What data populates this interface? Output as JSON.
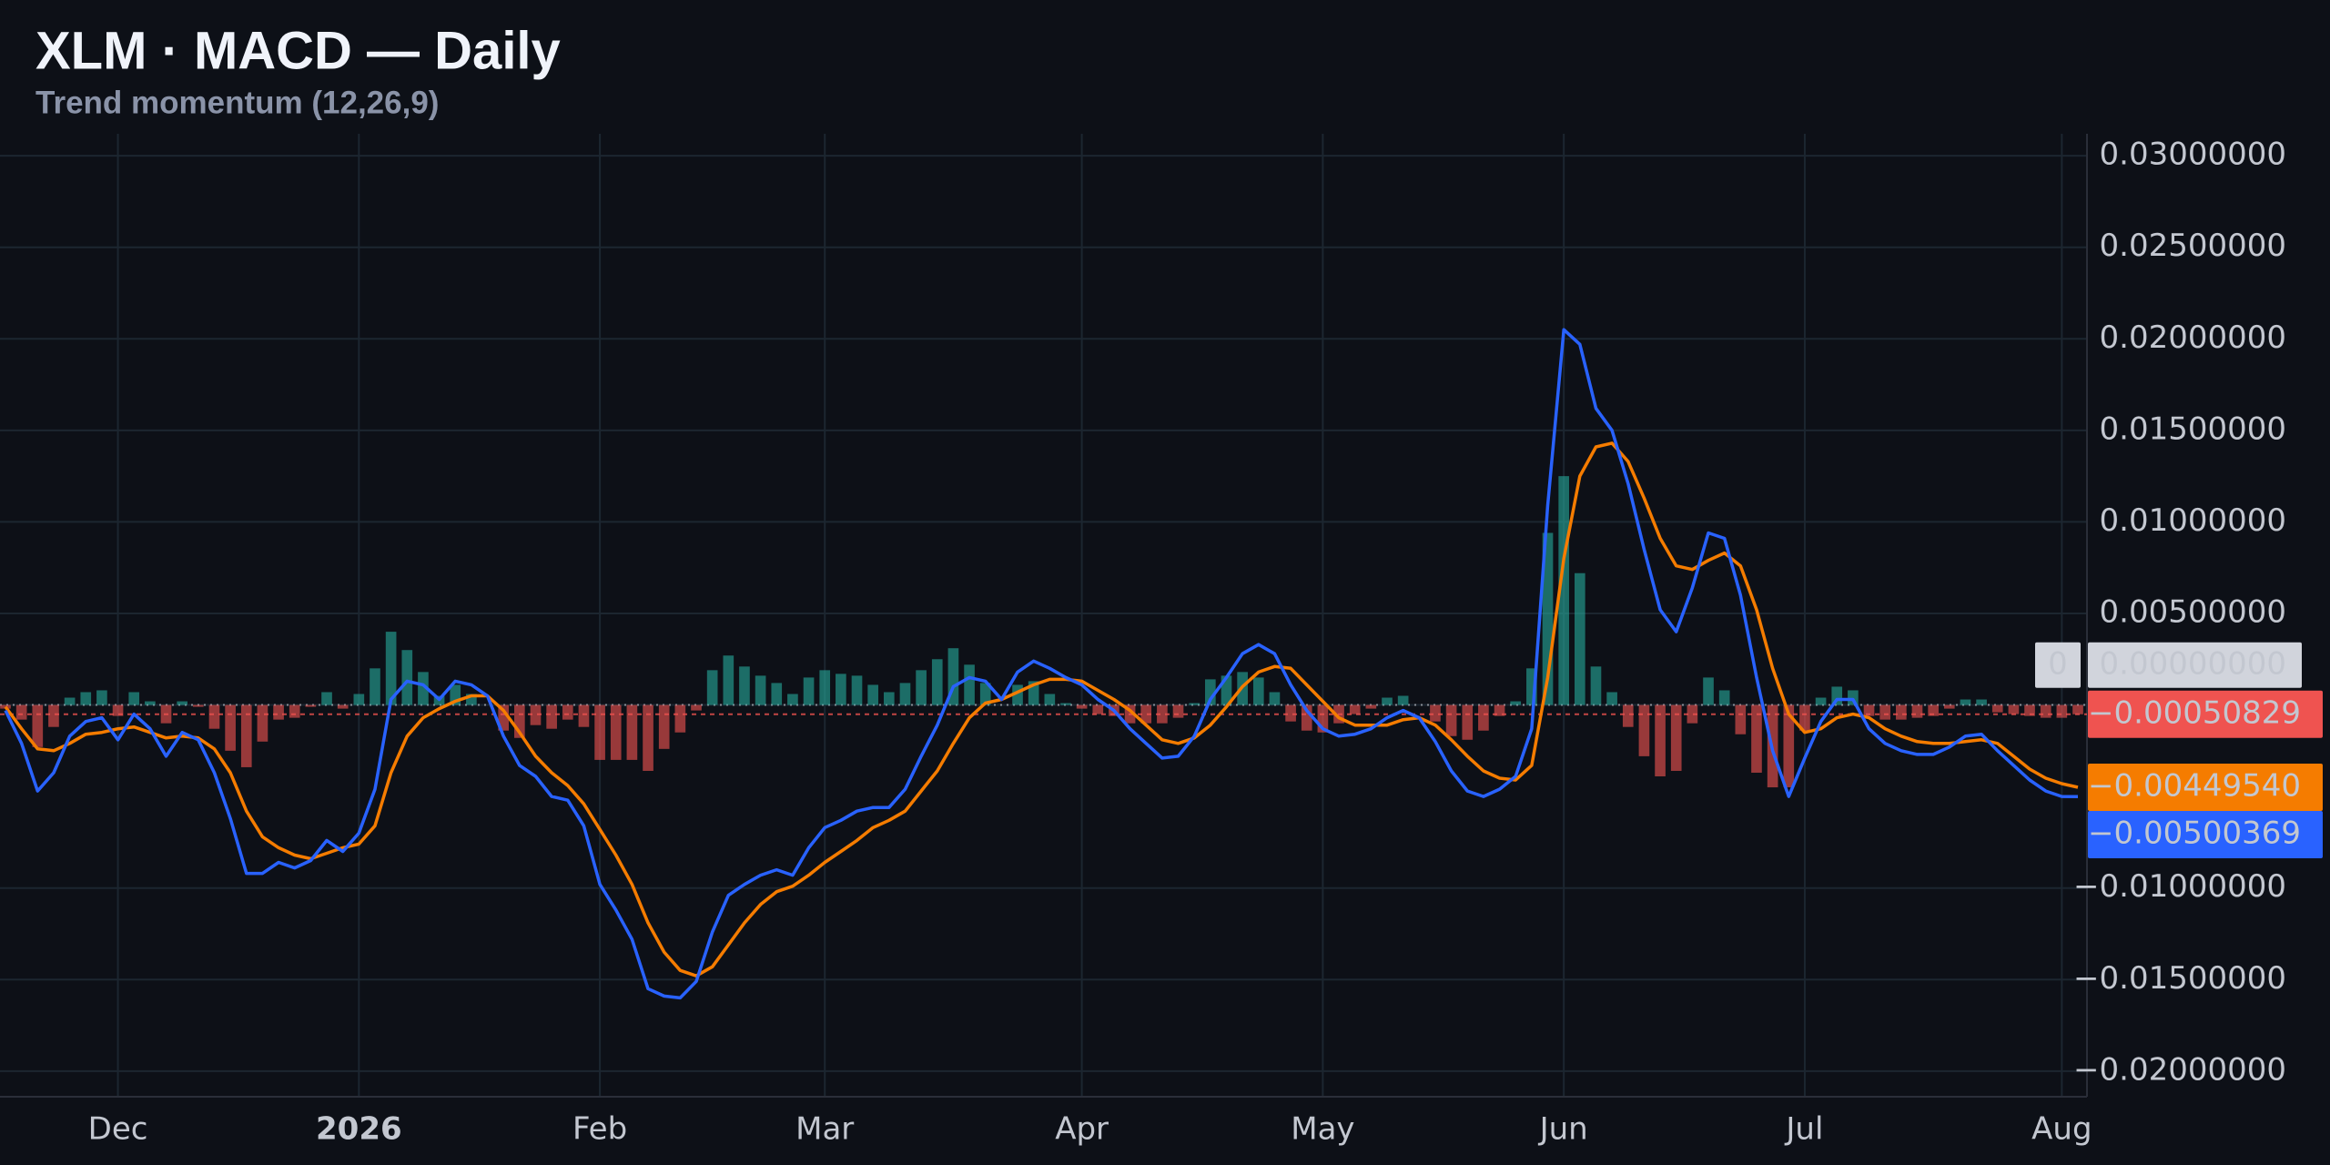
{
  "chart_data": {
    "type": "macd",
    "title": "XLM · MACD — Daily",
    "subtitle": "Trend momentum (12,26,9)",
    "zero_tag": "0",
    "grid": true,
    "categories": [
      null,
      null,
      null,
      null,
      null,
      null,
      null,
      "Dec",
      null,
      null,
      null,
      null,
      null,
      null,
      null,
      null,
      null,
      null,
      null,
      null,
      null,
      null,
      "2026",
      null,
      null,
      null,
      null,
      null,
      null,
      null,
      null,
      null,
      null,
      null,
      null,
      null,
      null,
      "Feb",
      null,
      null,
      null,
      null,
      null,
      null,
      null,
      null,
      null,
      null,
      null,
      null,
      null,
      "Mar",
      null,
      null,
      null,
      null,
      null,
      null,
      null,
      null,
      null,
      null,
      null,
      null,
      null,
      null,
      null,
      "Apr",
      null,
      null,
      null,
      null,
      null,
      null,
      null,
      null,
      null,
      null,
      null,
      null,
      null,
      null,
      "May",
      null,
      null,
      null,
      null,
      null,
      null,
      null,
      null,
      null,
      null,
      null,
      null,
      null,
      null,
      "Jun",
      null,
      null,
      null,
      null,
      null,
      null,
      null,
      null,
      null,
      null,
      null,
      null,
      null,
      null,
      "Jul",
      null,
      null,
      null,
      null,
      null,
      null,
      null,
      null,
      null,
      null,
      null,
      null,
      null,
      null,
      null,
      "Aug",
      null
    ],
    "ylim": [
      -0.0214,
      0.0312
    ],
    "yticks": [
      {
        "value": 0.03,
        "label": "0.03000000"
      },
      {
        "value": 0.025,
        "label": "0.02500000"
      },
      {
        "value": 0.02,
        "label": "0.02000000"
      },
      {
        "value": 0.015,
        "label": "0.01500000"
      },
      {
        "value": 0.01,
        "label": "0.01000000"
      },
      {
        "value": 0.005,
        "label": "0.00500000"
      },
      {
        "value": 0,
        "label": "0.00000000"
      },
      {
        "value": -0.01,
        "label": "−0.01000000"
      },
      {
        "value": -0.015,
        "label": "−0.01500000"
      },
      {
        "value": -0.02,
        "label": "−0.02000000"
      }
    ],
    "series": [
      {
        "style": "bar",
        "color": "#ef5350",
        "positive_color": "#26a69a",
        "negative_color": "#ef5350",
        "last_value_label": "−0.00050829",
        "values": [
          -0.0002,
          -0.0008,
          -0.0023,
          -0.0012,
          0.0004,
          0.0007,
          0.0008,
          -0.0006,
          0.0007,
          0.0002,
          -0.001,
          0.0002,
          -0.0001,
          -0.0013,
          -0.0025,
          -0.0034,
          -0.002,
          -0.0008,
          -0.0007,
          -0.0001,
          0.0007,
          -0.0002,
          0.0006,
          0.002,
          0.004,
          0.003,
          0.0018,
          0.0005,
          0.0011,
          0.0006,
          0,
          -0.0014,
          -0.0018,
          -0.0011,
          -0.0013,
          -0.0008,
          -0.0012,
          -0.003,
          -0.003,
          -0.003,
          -0.0036,
          -0.0024,
          -0.0015,
          -0.0003,
          0.0019,
          0.0027,
          0.0021,
          0.0016,
          0.0012,
          0.0006,
          0.0015,
          0.0019,
          0.0017,
          0.0016,
          0.0011,
          0.0007,
          0.0012,
          0.0019,
          0.0025,
          0.0031,
          0.0022,
          0.0012,
          0,
          0.0011,
          0.0013,
          0.0006,
          0.0001,
          -0.0002,
          -0.0005,
          -0.0006,
          -0.001,
          -0.001,
          -0.001,
          -0.0007,
          0.0001,
          0.0014,
          0.0016,
          0.0018,
          0.0015,
          0.0007,
          -0.0009,
          -0.0014,
          -0.0015,
          -0.001,
          -0.0005,
          -0.0002,
          0.0004,
          0.0005,
          0,
          -0.0009,
          -0.0017,
          -0.0019,
          -0.0014,
          -0.0006,
          0.0002,
          0.002,
          0.0094,
          0.0125,
          0.0072,
          0.0021,
          0.0007,
          -0.0012,
          -0.0028,
          -0.0039,
          -0.0036,
          -0.001,
          0.0015,
          0.0008,
          -0.0016,
          -0.0037,
          -0.0045,
          -0.0045,
          -0.0014,
          0.0004,
          0.001,
          0.0008,
          -0.0006,
          -0.0008,
          -0.0008,
          -0.0007,
          -0.0006,
          -0.0002,
          0.0003,
          0.0003,
          -0.0004,
          -0.0005,
          -0.0006,
          -0.0007,
          -0.0007,
          -0.00050829
        ]
      },
      {
        "style": "line",
        "color": "#f57c00",
        "last_value_label": "−0.00449540",
        "values": [
          -0.0001,
          -0.0013,
          -0.0024,
          -0.0025,
          -0.0021,
          -0.0016,
          -0.0015,
          -0.0013,
          -0.0012,
          -0.0015,
          -0.0018,
          -0.0017,
          -0.0018,
          -0.0024,
          -0.0037,
          -0.0058,
          -0.0072,
          -0.0078,
          -0.0082,
          -0.0084,
          -0.0081,
          -0.0078,
          -0.0076,
          -0.0066,
          -0.0037,
          -0.0017,
          -0.0007,
          -0.0002,
          0.0002,
          0.0005,
          0.0005,
          -0.0003,
          -0.0015,
          -0.0028,
          -0.0037,
          -0.0044,
          -0.0054,
          -0.0068,
          -0.0082,
          -0.0098,
          -0.0119,
          -0.0135,
          -0.0145,
          -0.0148,
          -0.0143,
          -0.0131,
          -0.0119,
          -0.0109,
          -0.0102,
          -0.0099,
          -0.0093,
          -0.0086,
          -0.008,
          -0.0074,
          -0.0067,
          -0.0063,
          -0.0058,
          -0.0047,
          -0.0036,
          -0.0021,
          -0.0007,
          0.0001,
          0.0003,
          0.0007,
          0.0011,
          0.0014,
          0.0014,
          0.0013,
          0.0008,
          0.0003,
          -0.0003,
          -0.0011,
          -0.0019,
          -0.0021,
          -0.0018,
          -0.0011,
          -0.0001,
          0.001,
          0.0018,
          0.0021,
          0.002,
          0.0011,
          0.0002,
          -0.0007,
          -0.0011,
          -0.0011,
          -0.0011,
          -0.0008,
          -0.0007,
          -0.0011,
          -0.0019,
          -0.0028,
          -0.0036,
          -0.004,
          -0.0041,
          -0.0033,
          0.0015,
          0.008,
          0.0125,
          0.0141,
          0.0143,
          0.0133,
          0.0113,
          0.0091,
          0.0076,
          0.0074,
          0.0079,
          0.0083,
          0.0076,
          0.0052,
          0.002,
          -0.0005,
          -0.0015,
          -0.0013,
          -0.0007,
          -0.0005,
          -0.0007,
          -0.0013,
          -0.0017,
          -0.002,
          -0.0021,
          -0.0021,
          -0.002,
          -0.0019,
          -0.0021,
          -0.0028,
          -0.0035,
          -0.004,
          -0.0043,
          -0.0044954
        ]
      },
      {
        "style": "line",
        "color": "#2962ff",
        "last_value_label": "−0.00500369",
        "values": [
          -0.0003,
          -0.0021,
          -0.0047,
          -0.0037,
          -0.0017,
          -0.0009,
          -0.0007,
          -0.0019,
          -0.0005,
          -0.0013,
          -0.0028,
          -0.0015,
          -0.0019,
          -0.0037,
          -0.0062,
          -0.0092,
          -0.0092,
          -0.0086,
          -0.0089,
          -0.0085,
          -0.0074,
          -0.008,
          -0.007,
          -0.0046,
          0.0003,
          0.0013,
          0.0011,
          0.0003,
          0.0013,
          0.0011,
          0.0005,
          -0.0017,
          -0.0033,
          -0.0039,
          -0.005,
          -0.0052,
          -0.0066,
          -0.0098,
          -0.0112,
          -0.0128,
          -0.0155,
          -0.0159,
          -0.016,
          -0.0151,
          -0.0124,
          -0.0104,
          -0.0098,
          -0.0093,
          -0.009,
          -0.0093,
          -0.0078,
          -0.0067,
          -0.0063,
          -0.0058,
          -0.0056,
          -0.0056,
          -0.0046,
          -0.0028,
          -0.0011,
          0.001,
          0.0015,
          0.0013,
          0.0003,
          0.0018,
          0.0024,
          0.002,
          0.0015,
          0.0011,
          0.0003,
          -0.0003,
          -0.0013,
          -0.0021,
          -0.0029,
          -0.0028,
          -0.0017,
          0.0003,
          0.0015,
          0.0028,
          0.0033,
          0.0028,
          0.0011,
          -0.0003,
          -0.0013,
          -0.0017,
          -0.0016,
          -0.0013,
          -0.0007,
          -0.0003,
          -0.0007,
          -0.002,
          -0.0036,
          -0.0047,
          -0.005,
          -0.0046,
          -0.0039,
          -0.0013,
          0.0109,
          0.0205,
          0.0197,
          0.0162,
          0.015,
          0.0121,
          0.0085,
          0.0052,
          0.004,
          0.0064,
          0.0094,
          0.0091,
          0.006,
          0.0015,
          -0.0025,
          -0.005,
          -0.0029,
          -0.0009,
          0.0003,
          0.0003,
          -0.0013,
          -0.0021,
          -0.0025,
          -0.0027,
          -0.0027,
          -0.0023,
          -0.0017,
          -0.0016,
          -0.0025,
          -0.0033,
          -0.0041,
          -0.0047,
          -0.005,
          -0.00500369
        ]
      }
    ]
  }
}
